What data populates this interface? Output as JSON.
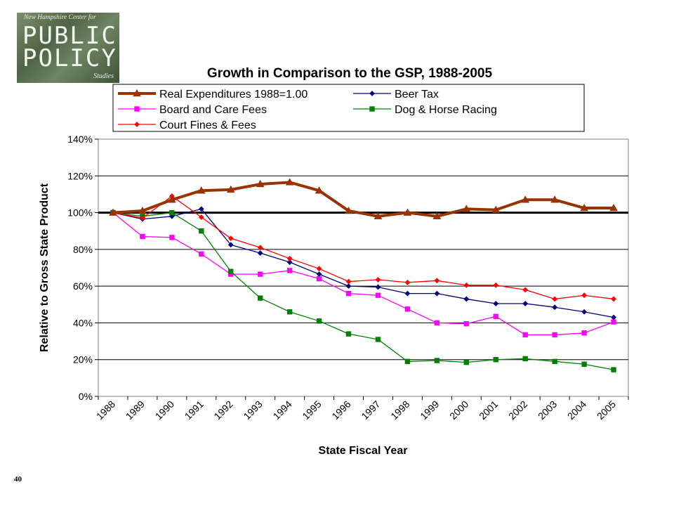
{
  "logo": {
    "tagline": "New Hampshire Center for",
    "word1": "PUBLIC",
    "word2": "POLICY",
    "word3": "Studies"
  },
  "page_number": "40",
  "chart_data": {
    "type": "line",
    "title": "Growth in Comparison to the GSP, 1988-2005",
    "xlabel": "State Fiscal Year",
    "ylabel": "Relative to Gross State Product",
    "categories": [
      "1988",
      "1989",
      "1990",
      "1991",
      "1992",
      "1993",
      "1994",
      "1995",
      "1996",
      "1997",
      "1998",
      "1999",
      "2000",
      "2001",
      "2002",
      "2003",
      "2004",
      "2005"
    ],
    "y_ticks": [
      "0%",
      "20%",
      "40%",
      "60%",
      "80%",
      "100%",
      "120%",
      "140%"
    ],
    "ylim": [
      0,
      1.4
    ],
    "grid": "horizontal",
    "reference_line": 1.0,
    "legend_position": "top",
    "series": [
      {
        "name": "Real Expenditures 1988=1.00",
        "color": "#993300",
        "marker": "triangle",
        "values": [
          1.0,
          1.01,
          1.07,
          1.12,
          1.125,
          1.155,
          1.165,
          1.12,
          1.01,
          0.98,
          1.0,
          0.98,
          1.02,
          1.015,
          1.07,
          1.07,
          1.025,
          1.025
        ]
      },
      {
        "name": "Beer Tax",
        "color": "#000080",
        "marker": "diamond",
        "values": [
          1.0,
          0.965,
          0.98,
          1.02,
          0.825,
          0.78,
          0.73,
          0.665,
          0.6,
          0.595,
          0.56,
          0.56,
          0.53,
          0.505,
          0.505,
          0.485,
          0.46,
          0.43
        ]
      },
      {
        "name": "Board and Care Fees",
        "color": "#ff00ff",
        "marker": "square",
        "values": [
          1.0,
          0.87,
          0.865,
          0.775,
          0.665,
          0.665,
          0.685,
          0.64,
          0.56,
          0.55,
          0.475,
          0.4,
          0.395,
          0.435,
          0.335,
          0.335,
          0.345,
          0.405
        ]
      },
      {
        "name": "Dog & Horse Racing",
        "color": "#008000",
        "marker": "square",
        "values": [
          1.0,
          0.98,
          1.0,
          0.9,
          0.68,
          0.535,
          0.46,
          0.41,
          0.34,
          0.31,
          0.19,
          0.195,
          0.185,
          0.2,
          0.205,
          0.19,
          0.175,
          0.145
        ]
      },
      {
        "name": "Court Fines & Fees",
        "color": "#ff0000",
        "marker": "diamond",
        "values": [
          1.0,
          0.97,
          1.09,
          0.975,
          0.86,
          0.81,
          0.75,
          0.695,
          0.625,
          0.635,
          0.62,
          0.63,
          0.605,
          0.605,
          0.58,
          0.53,
          0.55,
          0.53
        ]
      }
    ]
  }
}
